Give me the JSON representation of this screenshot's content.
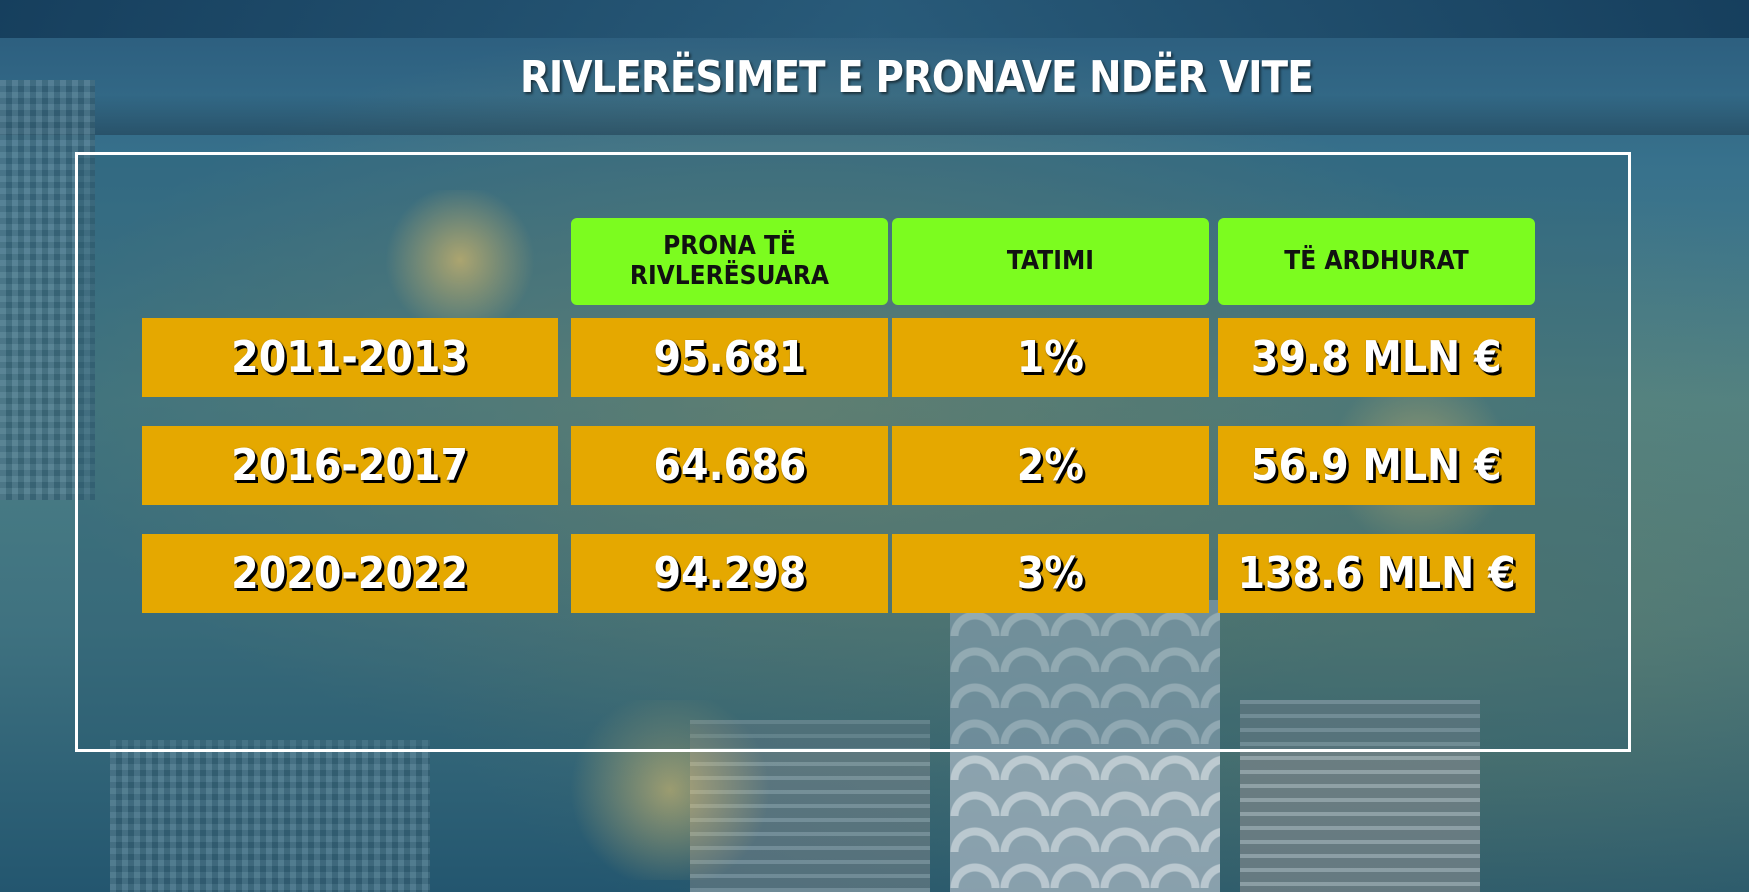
{
  "title": "RIVLERËSIMET E PRONAVE NDËR VITE",
  "headers": [
    "PRONA TË RIVLERËSUARA",
    "TATIMI",
    "TË ARDHURAT"
  ],
  "rows": [
    {
      "period": "2011-2013",
      "properties": "95.681",
      "tax": "1%",
      "revenue": "39.8 MLN €"
    },
    {
      "period": "2016-2017",
      "properties": "64.686",
      "tax": "2%",
      "revenue": "56.9 MLN €"
    },
    {
      "period": "2020-2022",
      "properties": "94.298",
      "tax": "3%",
      "revenue": "138.6 MLN €"
    }
  ],
  "colors": {
    "header_bg": "#7cfc1f",
    "cell_bg": "#e5a800",
    "panel_border": "#ffffff"
  }
}
